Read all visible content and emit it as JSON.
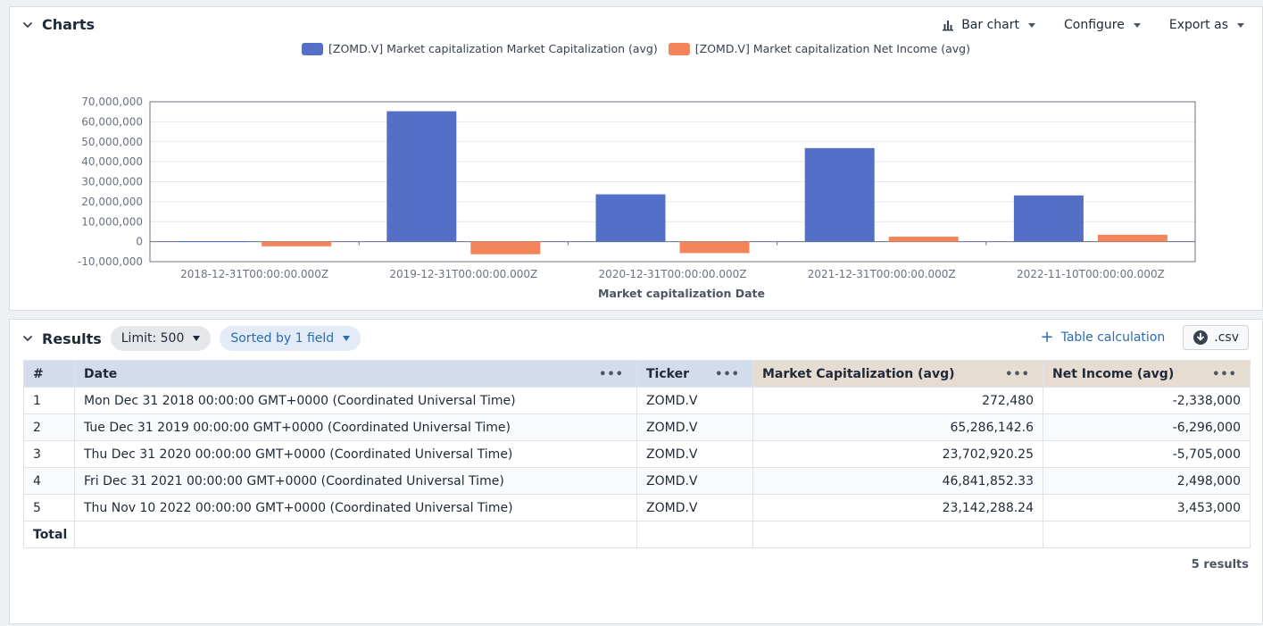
{
  "charts": {
    "title": "Charts",
    "toolbar": {
      "bar_chart_label": "Bar chart",
      "configure_label": "Configure",
      "export_label": "Export as"
    }
  },
  "chart_data": {
    "type": "bar",
    "categories": [
      "2018-12-31T00:00:00.000Z",
      "2019-12-31T00:00:00.000Z",
      "2020-12-31T00:00:00.000Z",
      "2021-12-31T00:00:00.000Z",
      "2022-11-10T00:00:00.000Z"
    ],
    "series": [
      {
        "name": "[ZOMD.V] Market capitalization Market Capitalization (avg)",
        "color": "#5470c6",
        "values": [
          272480,
          65286142.6,
          23702920.25,
          46841852.33,
          23142288.24
        ]
      },
      {
        "name": "[ZOMD.V] Market capitalization Net Income (avg)",
        "color": "#f4845a",
        "values": [
          -2338000,
          -6296000,
          -5705000,
          2498000,
          3453000
        ]
      }
    ],
    "xlabel": "Market capitalization Date",
    "ylabel": "",
    "ylim": [
      -10000000,
      70000000
    ],
    "yticks": [
      70000000,
      60000000,
      50000000,
      40000000,
      30000000,
      20000000,
      10000000,
      0,
      -10000000
    ],
    "ytick_labels": [
      "70,000,000",
      "60,000,000",
      "50,000,000",
      "40,000,000",
      "30,000,000",
      "20,000,000",
      "10,000,000",
      "0",
      "-10,000,000"
    ],
    "grid": true,
    "legend": "top-center"
  },
  "results": {
    "title": "Results",
    "limit_label": "Limit: 500",
    "sort_label": "Sorted by 1 field",
    "table_calc_label": "Table calculation",
    "csv_label": ".csv",
    "columns": [
      "#",
      "Date",
      "Ticker",
      "Market Capitalization (avg)",
      "Net Income (avg)"
    ],
    "rows": [
      [
        "1",
        "Mon Dec 31 2018 00:00:00 GMT+0000 (Coordinated Universal Time)",
        "ZOMD.V",
        "272,480",
        "-2,338,000"
      ],
      [
        "2",
        "Tue Dec 31 2019 00:00:00 GMT+0000 (Coordinated Universal Time)",
        "ZOMD.V",
        "65,286,142.6",
        "-6,296,000"
      ],
      [
        "3",
        "Thu Dec 31 2020 00:00:00 GMT+0000 (Coordinated Universal Time)",
        "ZOMD.V",
        "23,702,920.25",
        "-5,705,000"
      ],
      [
        "4",
        "Fri Dec 31 2021 00:00:00 GMT+0000 (Coordinated Universal Time)",
        "ZOMD.V",
        "46,841,852.33",
        "2,498,000"
      ],
      [
        "5",
        "Thu Nov 10 2022 00:00:00 GMT+0000 (Coordinated Universal Time)",
        "ZOMD.V",
        "23,142,288.24",
        "3,453,000"
      ]
    ],
    "total_label": "Total",
    "count_label": "5 results"
  }
}
